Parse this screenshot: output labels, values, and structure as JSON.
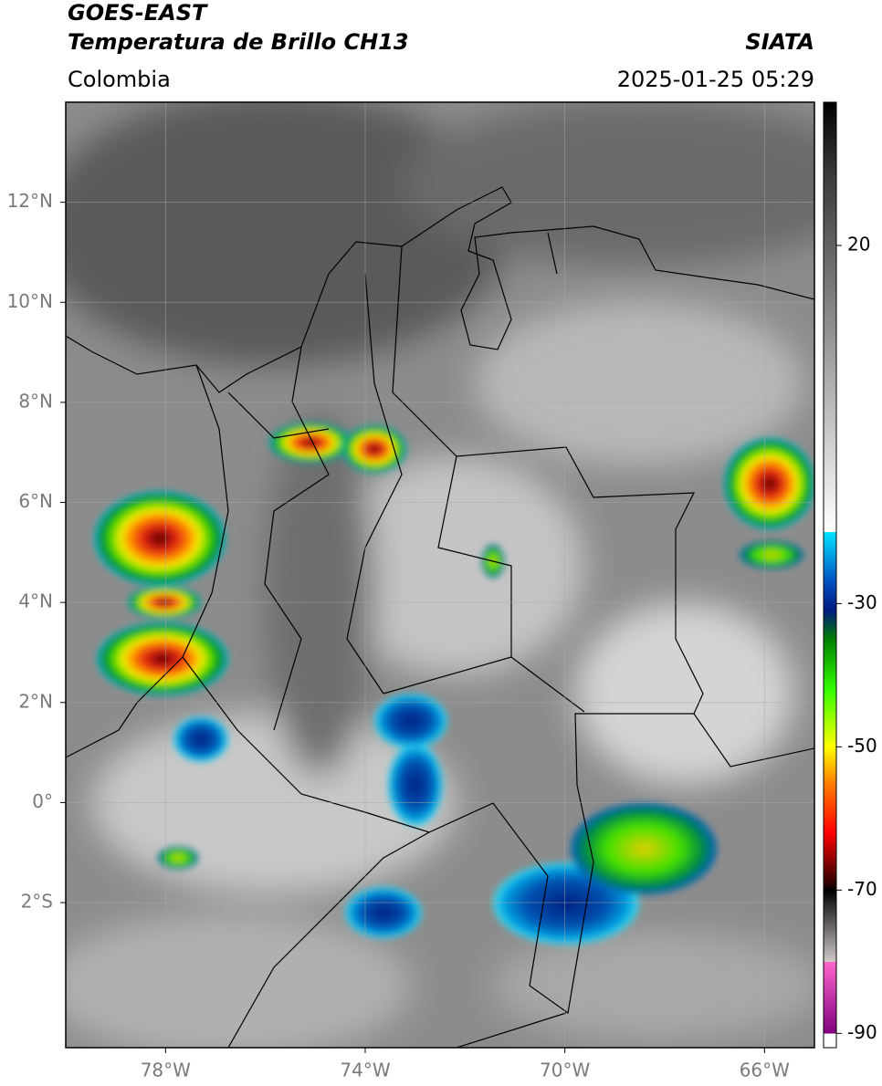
{
  "header": {
    "title": "GOES-EAST",
    "subtitle": "Temperatura de Brillo CH13",
    "source": "SIATA",
    "region": "Colombia",
    "timestamp": "2025-01-25 05:29"
  },
  "map": {
    "lonlim": [
      -80,
      -65
    ],
    "latlim": [
      -4.9,
      14
    ],
    "lon_ticks": [
      {
        "value": -78,
        "label": "78°W"
      },
      {
        "value": -74,
        "label": "74°W"
      },
      {
        "value": -70,
        "label": "70°W"
      },
      {
        "value": -66,
        "label": "66°W"
      }
    ],
    "lat_ticks": [
      {
        "value": 12,
        "label": "12°N"
      },
      {
        "value": 10,
        "label": "10°N"
      },
      {
        "value": 8,
        "label": "8°N"
      },
      {
        "value": 6,
        "label": "6°N"
      },
      {
        "value": 4,
        "label": "4°N"
      },
      {
        "value": 2,
        "label": "2°N"
      },
      {
        "value": 0,
        "label": "0°"
      },
      {
        "value": -2,
        "label": "2°S"
      }
    ],
    "grid": true
  },
  "colorbar": {
    "lim": [
      -92,
      40
    ],
    "ticks": [
      20,
      -30,
      -50,
      -70,
      -90
    ],
    "colors": [
      {
        "value": 40,
        "color": "#000000"
      },
      {
        "value": 30,
        "color": "#3a3a3a"
      },
      {
        "value": 10,
        "color": "#8a8a8a"
      },
      {
        "value": -20,
        "color": "#ffffff"
      },
      {
        "value": -20,
        "color": "#00e5ff"
      },
      {
        "value": -27,
        "color": "#0050c0"
      },
      {
        "value": -31,
        "color": "#001a80"
      },
      {
        "value": -35,
        "color": "#008000"
      },
      {
        "value": -42,
        "color": "#33ff00"
      },
      {
        "value": -50,
        "color": "#ffff00"
      },
      {
        "value": -55,
        "color": "#ff8000"
      },
      {
        "value": -62,
        "color": "#ff0000"
      },
      {
        "value": -69,
        "color": "#300000"
      },
      {
        "value": -70,
        "color": "#000000"
      },
      {
        "value": -80,
        "color": "#d0c8c8"
      },
      {
        "value": -80,
        "color": "#ff66cc"
      },
      {
        "value": -90,
        "color": "#800080"
      },
      {
        "value": -90,
        "color": "#ffffff"
      },
      {
        "value": -92,
        "color": "#ffffff"
      }
    ]
  }
}
